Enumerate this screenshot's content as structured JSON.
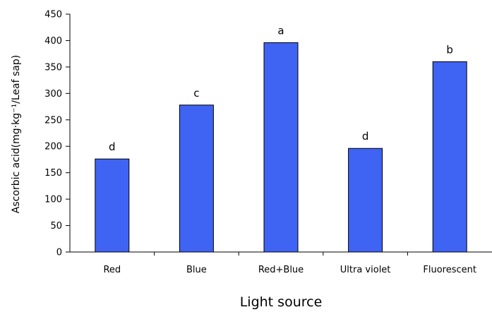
{
  "chart_data": {
    "type": "bar",
    "categories": [
      "Red",
      "Blue",
      "Red+Blue",
      "Ultra violet",
      "Fluorescent"
    ],
    "values": [
      176,
      278,
      396,
      196,
      360
    ],
    "annotations": [
      "d",
      "c",
      "a",
      "d",
      "b"
    ],
    "title": "",
    "xlabel": "Light source",
    "ylabel": "Ascorbic  acid(mg·kg⁻¹/Leaf  sap)",
    "ylim": [
      0,
      450
    ],
    "yticks": [
      "0",
      "50",
      "100",
      "150",
      "200",
      "250",
      "300",
      "350",
      "400",
      "450"
    ],
    "grid": false,
    "legend": "none",
    "colors": {
      "bar": "#3F63F2",
      "bar_outline": "#000000",
      "axis": "#000000"
    }
  }
}
